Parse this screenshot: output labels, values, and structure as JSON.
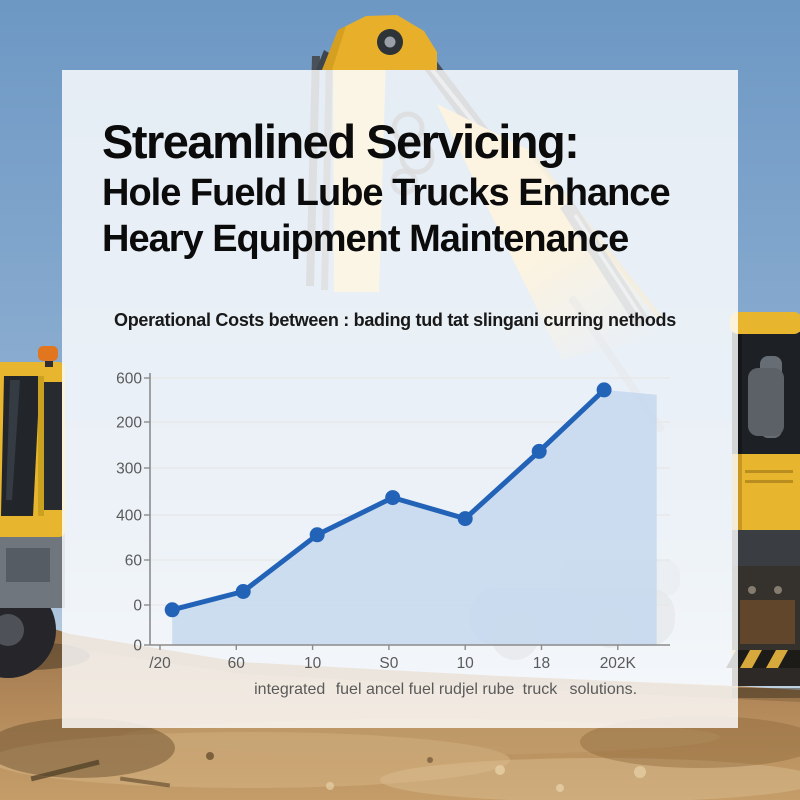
{
  "card": {
    "headline": [
      "Streamlined Servicing:",
      "Hole Fueld Lube Trucks Enhance",
      "Heary Equipment Maintenance"
    ]
  },
  "chart_data": {
    "type": "area",
    "title": "Operational Costs between : bading tud tat slingani curring nethods",
    "legend": "none",
    "grid": true,
    "y_tick_labels": [
      "600",
      "200",
      "300",
      "400",
      "60",
      "0",
      "0"
    ],
    "x_tick_labels": [
      "/20",
      "60",
      "10",
      "S0",
      "10",
      "18",
      "202K"
    ],
    "x_sub_labels": [
      "integrated",
      "fuel ancel fuel",
      "rudjel rube",
      "truck",
      "solutions."
    ],
    "x_sub_label_units": [
      1.7,
      2.95,
      4.15,
      4.98,
      5.81
    ],
    "series": [
      {
        "name": "operational-costs",
        "x_units": [
          0.16,
          1.09,
          2.06,
          3.05,
          4.0,
          4.97,
          5.82
        ],
        "y_units": [
          0.88,
          1.3,
          2.56,
          3.37,
          2.92,
          4.36,
          5.73
        ]
      }
    ],
    "fill_extend": {
      "x_unit": 6.51,
      "y_unit": 5.62
    },
    "colors": {
      "line": "#2263b8",
      "fill": "#c5d8ee",
      "grid": "#e6e6e6",
      "axis": "#8c8c8c",
      "tick_text": "#5a5a5a"
    }
  }
}
